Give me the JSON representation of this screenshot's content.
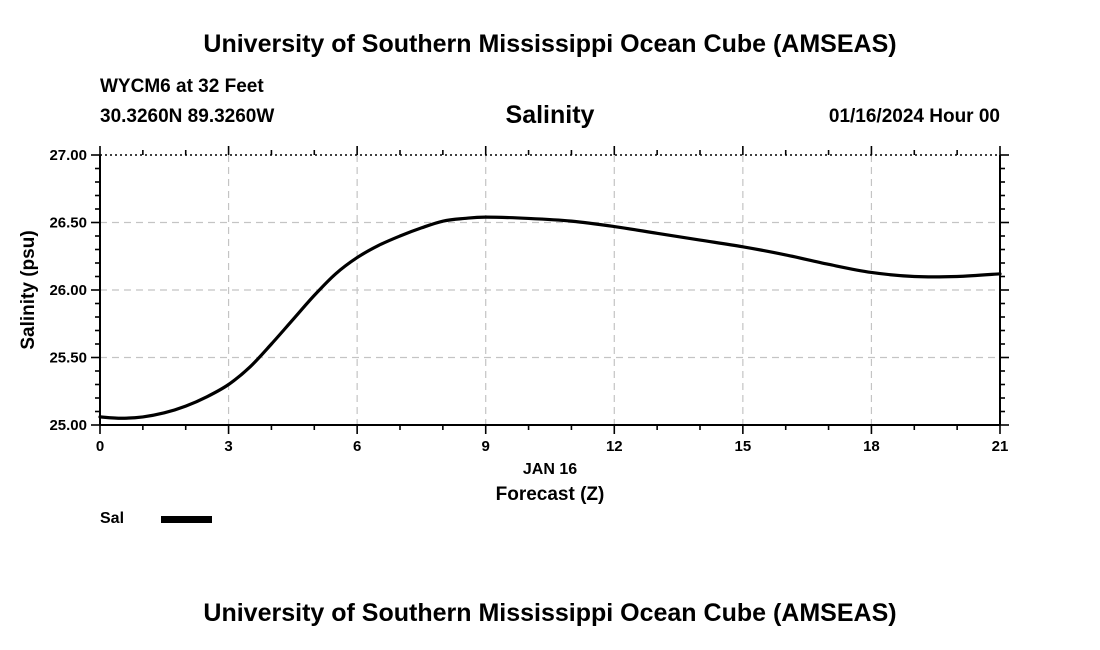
{
  "header": {
    "title": "University of Southern Mississippi Ocean Cube (AMSEAS)",
    "station": "WYCM6 at 32 Feet",
    "coordinates": "30.3260N  89.3260W",
    "run_time": "01/16/2024 Hour 00"
  },
  "footer": {
    "title": "University of Southern Mississippi Ocean Cube (AMSEAS)"
  },
  "legend": {
    "label": "Sal",
    "color": "#000000"
  },
  "chart_data": {
    "type": "line",
    "title": "Salinity",
    "xlabel": "Forecast (Z)",
    "date_label": "JAN 16",
    "ylabel": "Salinity (psu)",
    "xlim": [
      0,
      21
    ],
    "ylim": [
      25.0,
      27.0
    ],
    "xticks": [
      0,
      3,
      6,
      9,
      12,
      15,
      18,
      21
    ],
    "yticks": [
      "25.00",
      "25.50",
      "26.00",
      "26.50",
      "27.00"
    ],
    "grid": true,
    "series": [
      {
        "name": "Sal",
        "color": "#000000",
        "x": [
          0,
          0.5,
          1,
          1.5,
          2,
          2.5,
          3,
          3.5,
          4,
          4.5,
          5,
          5.5,
          6,
          6.5,
          7,
          7.5,
          8,
          8.5,
          9,
          10,
          11,
          12,
          13,
          14,
          15,
          16,
          17,
          18,
          19,
          20,
          21
        ],
        "values": [
          25.06,
          25.05,
          25.06,
          25.09,
          25.14,
          25.21,
          25.3,
          25.43,
          25.6,
          25.78,
          25.96,
          26.12,
          26.24,
          26.33,
          26.4,
          26.46,
          26.51,
          26.53,
          26.54,
          26.53,
          26.51,
          26.47,
          26.42,
          26.37,
          26.32,
          26.26,
          26.19,
          26.13,
          26.1,
          26.1,
          26.12
        ]
      }
    ]
  }
}
